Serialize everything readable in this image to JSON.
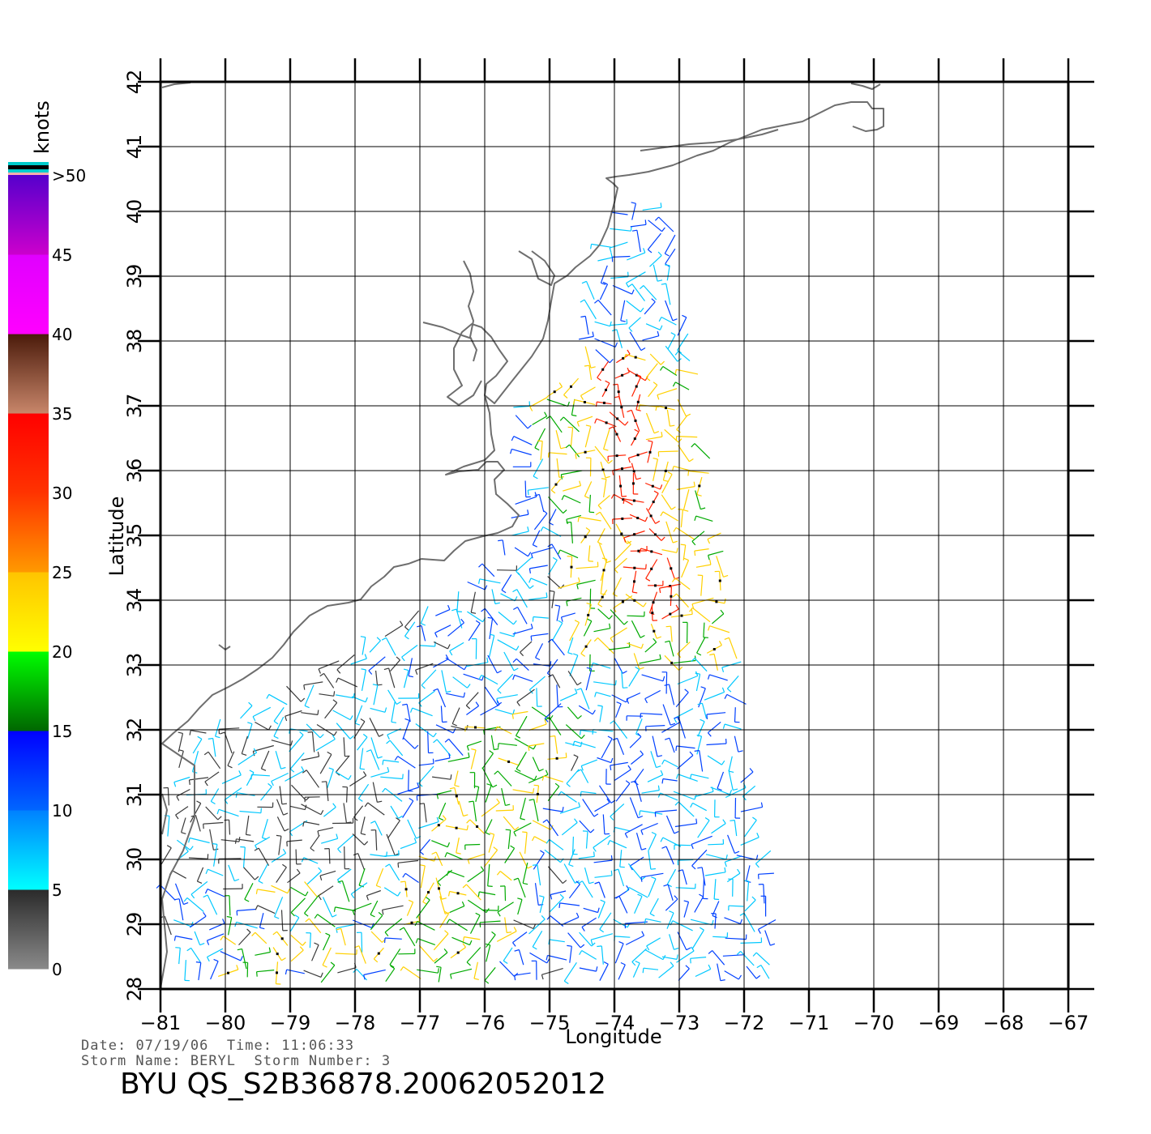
{
  "map": {
    "x_label": "Longitude",
    "y_label": "Latitude",
    "lon_ticks": [
      "-81",
      "-80",
      "-79",
      "-78",
      "-77",
      "-76",
      "-75",
      "-74",
      "-73",
      "-72",
      "-71",
      "-70",
      "-69",
      "-68",
      "-67"
    ],
    "lat_ticks": [
      "28",
      "29",
      "30",
      "31",
      "32",
      "33",
      "34",
      "35",
      "36",
      "37",
      "38",
      "39",
      "40",
      "41",
      "42"
    ],
    "lon_range": [
      -81,
      -67
    ],
    "lat_range": [
      28,
      42
    ],
    "grid": true,
    "coastline_color": "#6e6e6e"
  },
  "colorbar": {
    "unit_label": "knots",
    "tick_labels": [
      "0",
      "5",
      "10",
      "15",
      "20",
      "25",
      "30",
      "35",
      "40",
      "45",
      ">50"
    ],
    "bands": [
      {
        "range": "0-5",
        "colors": [
          "#8a8a8a",
          "#2a2a2a"
        ]
      },
      {
        "range": "5-10",
        "colors": [
          "#00ffff",
          "#0080ff"
        ]
      },
      {
        "range": "10-15",
        "colors": [
          "#0066ff",
          "#0000ff"
        ]
      },
      {
        "range": "15-20",
        "colors": [
          "#006600",
          "#00ff00"
        ]
      },
      {
        "range": "20-25",
        "colors": [
          "#ffff00",
          "#ffc400"
        ]
      },
      {
        "range": "25-30",
        "colors": [
          "#ff9900",
          "#ff3300"
        ]
      },
      {
        "range": "30-35",
        "colors": [
          "#ff3300",
          "#ff0000"
        ]
      },
      {
        "range": "35-40",
        "colors": [
          "#c8866a",
          "#4a1a0a"
        ]
      },
      {
        "range": "40-45",
        "colors": [
          "#ff00ff",
          "#e000ff"
        ]
      },
      {
        "range": "45-50",
        "colors": [
          "#cc00cc",
          "#5500cc"
        ]
      }
    ],
    "cap_colors": [
      "#00cccc",
      "#000000",
      "#ffb0b0"
    ]
  },
  "wind_field": {
    "description_colors": {
      "calm": "#3a3a3a",
      "light": "#00c8ff",
      "moderate": "#0040ff",
      "fresh": "#00aa00",
      "strong": "#ffd000",
      "gale": "#ff2000",
      "storm": "#cc00cc"
    }
  },
  "footer": {
    "date_label": "Date:",
    "date": "07/19/06",
    "time_label": "Time:",
    "time": "11:06:33",
    "storm_name_label": "Storm Name:",
    "storm_name": "BERYL",
    "storm_number_label": "Storm Number:",
    "storm_number": "3",
    "product_id": "BYU QS_S2B36878.20062052012"
  }
}
